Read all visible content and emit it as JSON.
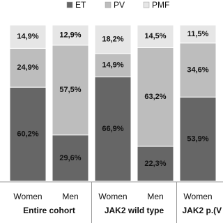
{
  "chart_data": {
    "type": "bar",
    "stacked": true,
    "categories": [
      "Women",
      "Men",
      "Women",
      "Men",
      "Women"
    ],
    "groups": [
      {
        "label": "Entire cohort",
        "size": 2
      },
      {
        "label": "JAK2 wild type",
        "size": 2
      },
      {
        "label": "JAK2  p.(V",
        "size": 1
      }
    ],
    "series": [
      {
        "name": "ET",
        "color": "#666666",
        "values": [
          60.2,
          29.6,
          66.9,
          22.3,
          53.9
        ],
        "value_labels": [
          "60,2%",
          "29,6%",
          "66,9%",
          "22,3%",
          "53,9%"
        ]
      },
      {
        "name": "PV",
        "color": "#bdbdbd",
        "values": [
          24.9,
          57.5,
          14.9,
          63.2,
          34.6
        ],
        "value_labels": [
          "24,9%",
          "57,5%",
          "14,9%",
          "63,2%",
          "34,6%"
        ]
      },
      {
        "name": "PMF",
        "color": "#e6e6e6",
        "values": [
          14.9,
          12.9,
          18.2,
          14.5,
          11.5
        ],
        "value_labels": [
          "14,9%",
          "12,9%",
          "18,2%",
          "14,5%",
          "11,5%"
        ]
      }
    ]
  }
}
